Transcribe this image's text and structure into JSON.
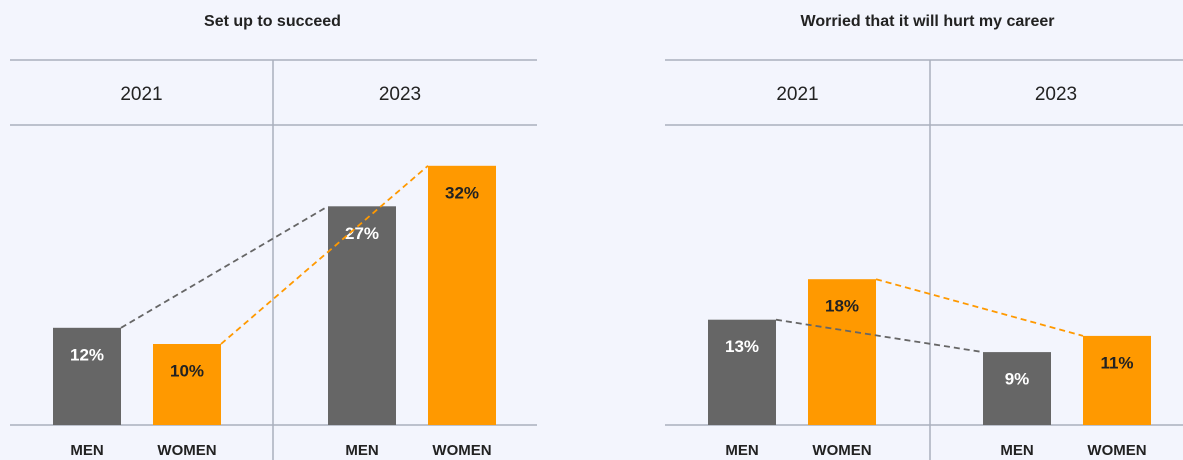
{
  "chart_data": [
    {
      "type": "bar",
      "title": "Set up to succeed",
      "categories": [
        "2021",
        "2023"
      ],
      "series": [
        {
          "name": "MEN",
          "color": "#666666",
          "values": [
            12,
            27
          ],
          "value_labels": [
            "12%",
            "27%"
          ]
        },
        {
          "name": "WOMEN",
          "color": "#ff9900",
          "values": [
            10,
            32
          ],
          "value_labels": [
            "10%",
            "32%"
          ]
        }
      ]
    },
    {
      "type": "bar",
      "title": "Worried that it will hurt my career",
      "categories": [
        "2021",
        "2023"
      ],
      "series": [
        {
          "name": "MEN",
          "color": "#666666",
          "values": [
            13,
            9
          ],
          "value_labels": [
            "13%",
            "9%"
          ]
        },
        {
          "name": "WOMEN",
          "color": "#ff9900",
          "values": [
            18,
            11
          ],
          "value_labels": [
            "18%",
            "11%"
          ]
        }
      ]
    }
  ]
}
